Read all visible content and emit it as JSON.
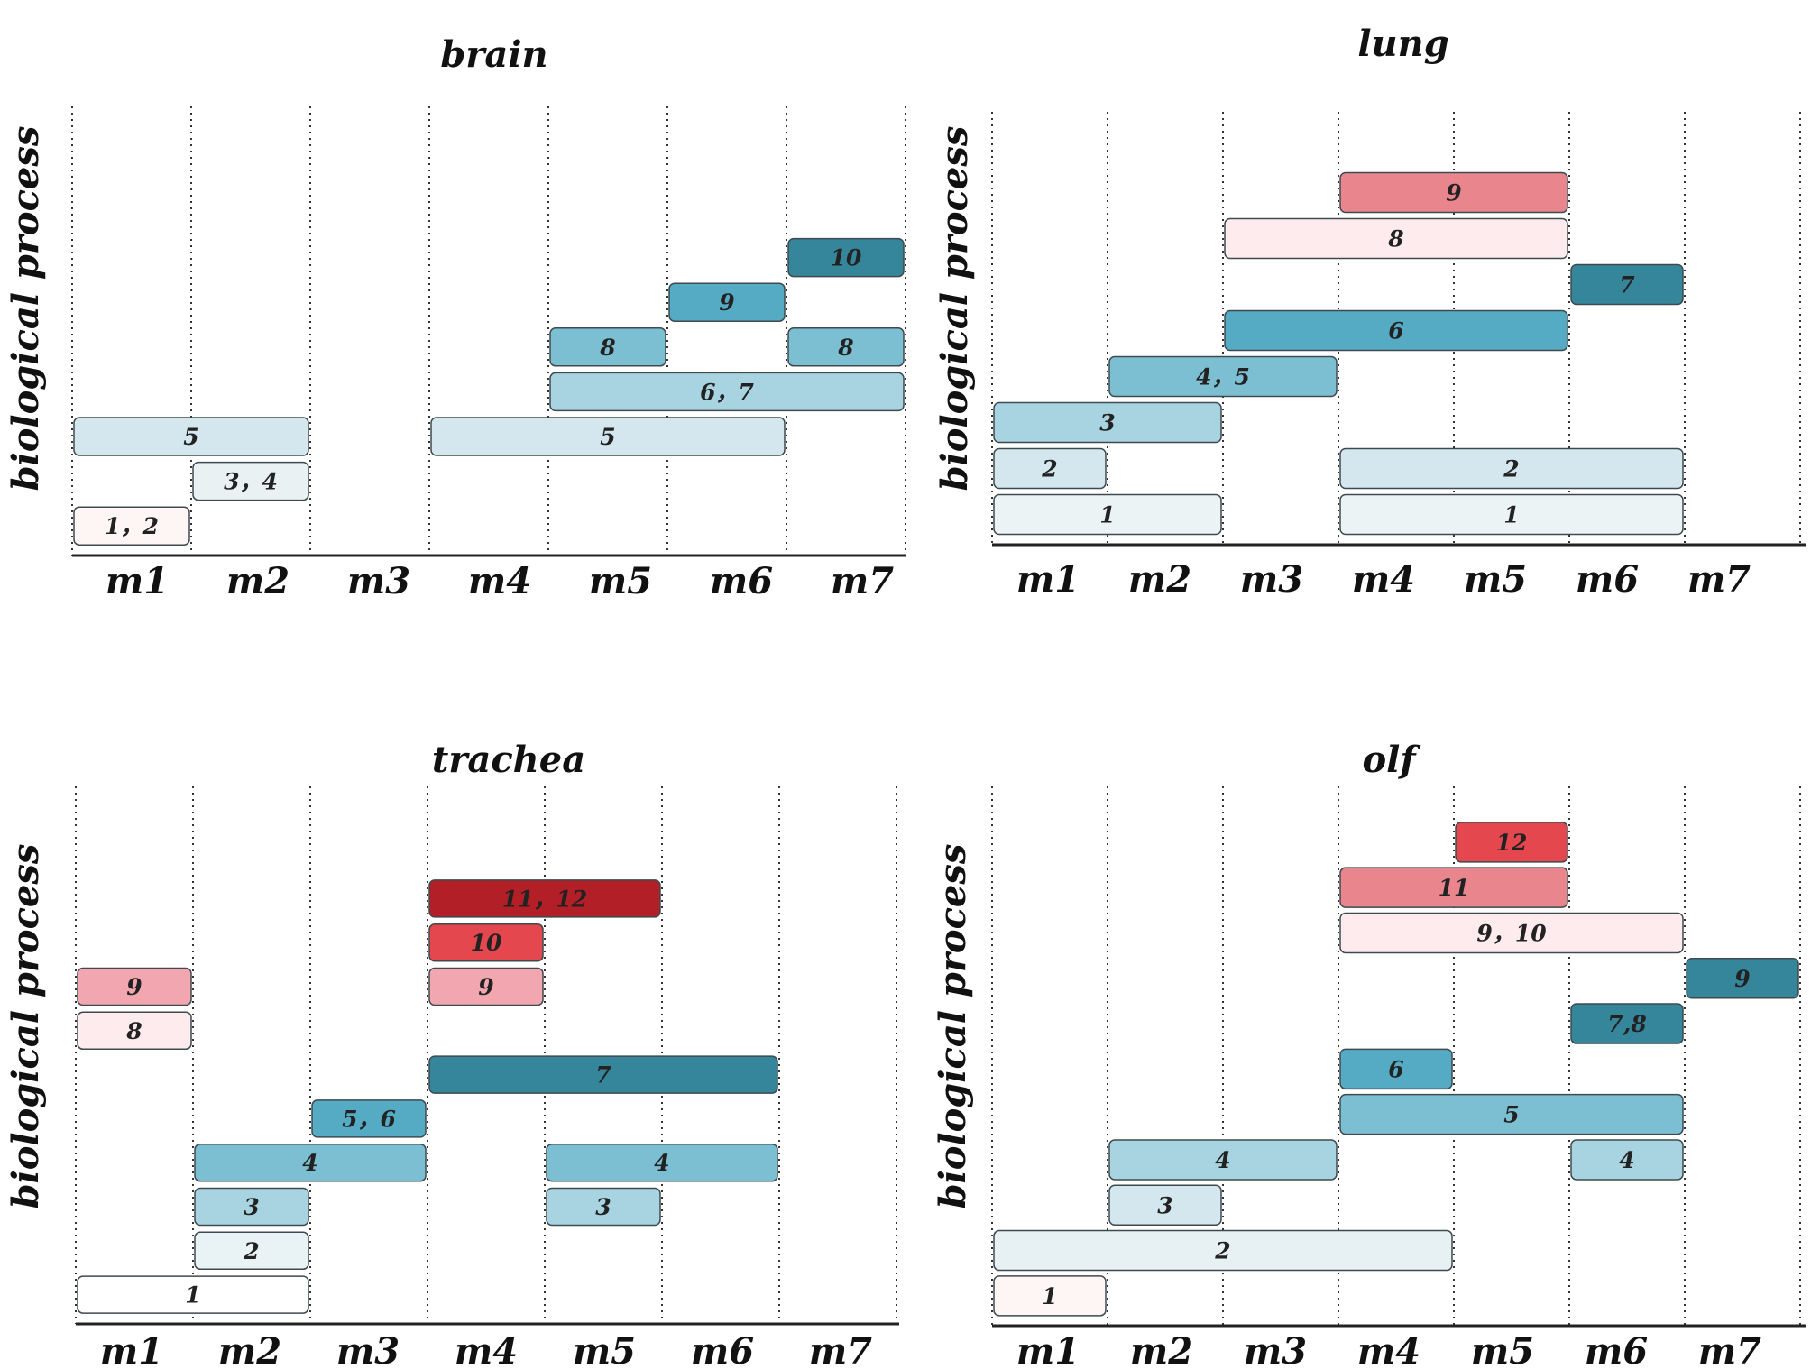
{
  "chart_data": [
    {
      "type": "gantt",
      "title": "brain",
      "ylabel": "biological process",
      "categories": [
        "m1",
        "m2",
        "m3",
        "m4",
        "m5",
        "m6",
        "m7"
      ],
      "bars": [
        {
          "label": "1，2",
          "start": 1,
          "end": 1,
          "level": 1,
          "color": "#fdf6f4"
        },
        {
          "label": "3，4",
          "start": 2,
          "end": 2,
          "level": 2,
          "color": "#e9f1f3"
        },
        {
          "label": "5",
          "start": 1,
          "end": 2,
          "level": 3,
          "color": "#d4e7ee"
        },
        {
          "label": "5",
          "start": 4,
          "end": 6,
          "level": 3,
          "color": "#d4e7ee"
        },
        {
          "label": "6，7",
          "start": 5,
          "end": 7,
          "level": 4,
          "color": "#a8d4e1"
        },
        {
          "label": "8",
          "start": 5,
          "end": 5,
          "level": 5,
          "color": "#7dbfd2"
        },
        {
          "label": "8",
          "start": 7,
          "end": 7,
          "level": 5,
          "color": "#7dbfd2"
        },
        {
          "label": "9",
          "start": 6,
          "end": 6,
          "level": 6,
          "color": "#55abc4"
        },
        {
          "label": "10",
          "start": 7,
          "end": 7,
          "level": 7,
          "color": "#35869b"
        }
      ]
    },
    {
      "type": "gantt",
      "title": "lung",
      "ylabel": "biological process",
      "categories": [
        "m1",
        "m2",
        "m3",
        "m4",
        "m5",
        "m6",
        "m7"
      ],
      "bars": [
        {
          "label": "1",
          "start": 1,
          "end": 2,
          "level": 1,
          "color": "#ecf3f5"
        },
        {
          "label": "1",
          "start": 4,
          "end": 6,
          "level": 1,
          "color": "#ecf3f5"
        },
        {
          "label": "2",
          "start": 1,
          "end": 1,
          "level": 2,
          "color": "#d4e7ee"
        },
        {
          "label": "2",
          "start": 4,
          "end": 6,
          "level": 2,
          "color": "#d4e7ee"
        },
        {
          "label": "3",
          "start": 1,
          "end": 2,
          "level": 3,
          "color": "#a8d4e1"
        },
        {
          "label": "4，5",
          "start": 2,
          "end": 3,
          "level": 4,
          "color": "#7dbfd2"
        },
        {
          "label": "6",
          "start": 3,
          "end": 5,
          "level": 5,
          "color": "#55abc4"
        },
        {
          "label": "7",
          "start": 6,
          "end": 6,
          "level": 6,
          "color": "#35869b"
        },
        {
          "label": "8",
          "start": 3,
          "end": 5,
          "level": 7,
          "color": "#fdebed"
        },
        {
          "label": "9",
          "start": 4,
          "end": 5,
          "level": 8,
          "color": "#e9868d"
        }
      ]
    },
    {
      "type": "gantt",
      "title": "trachea",
      "ylabel": "biological process",
      "categories": [
        "m1",
        "m2",
        "m3",
        "m4",
        "m5",
        "m6",
        "m7"
      ],
      "bars": [
        {
          "label": "1",
          "start": 1,
          "end": 2,
          "level": 1,
          "color": "#ffffff"
        },
        {
          "label": "2",
          "start": 2,
          "end": 2,
          "level": 2,
          "color": "#e9f2f5"
        },
        {
          "label": "3",
          "start": 2,
          "end": 2,
          "level": 3,
          "color": "#a8d4e1"
        },
        {
          "label": "3",
          "start": 5,
          "end": 5,
          "level": 3,
          "color": "#a8d4e1"
        },
        {
          "label": "4",
          "start": 2,
          "end": 3,
          "level": 4,
          "color": "#7dbfd2"
        },
        {
          "label": "4",
          "start": 5,
          "end": 6,
          "level": 4,
          "color": "#7dbfd2"
        },
        {
          "label": "5，6",
          "start": 3,
          "end": 3,
          "level": 5,
          "color": "#55abc4"
        },
        {
          "label": "7",
          "start": 4,
          "end": 6,
          "level": 6,
          "color": "#35869b"
        },
        {
          "label": "8",
          "start": 1,
          "end": 1,
          "level": 7,
          "color": "#fdebed"
        },
        {
          "label": "9",
          "start": 1,
          "end": 1,
          "level": 8,
          "color": "#f2a7b0"
        },
        {
          "label": "9",
          "start": 4,
          "end": 4,
          "level": 8,
          "color": "#f2a7b0"
        },
        {
          "label": "10",
          "start": 4,
          "end": 4,
          "level": 9,
          "color": "#e5474f"
        },
        {
          "label": "11，12",
          "start": 4,
          "end": 5,
          "level": 10,
          "color": "#b21f26"
        }
      ]
    },
    {
      "type": "gantt",
      "title": "olf",
      "ylabel": "biological process",
      "categories": [
        "m1",
        "m2",
        "m3",
        "m4",
        "m5",
        "m6",
        "m7"
      ],
      "bars": [
        {
          "label": "1",
          "start": 1,
          "end": 1,
          "level": 1,
          "color": "#fdf6f4"
        },
        {
          "label": "2",
          "start": 1,
          "end": 4,
          "level": 2,
          "color": "#e7f0f3"
        },
        {
          "label": "3",
          "start": 2,
          "end": 2,
          "level": 3,
          "color": "#d4e7ee"
        },
        {
          "label": "4",
          "start": 2,
          "end": 3,
          "level": 4,
          "color": "#a8d4e1"
        },
        {
          "label": "4",
          "start": 6,
          "end": 6,
          "level": 4,
          "color": "#a8d4e1"
        },
        {
          "label": "5",
          "start": 4,
          "end": 6,
          "level": 5,
          "color": "#7dbfd2"
        },
        {
          "label": "6",
          "start": 4,
          "end": 4,
          "level": 6,
          "color": "#55abc4"
        },
        {
          "label": "7,8",
          "start": 6,
          "end": 6,
          "level": 7,
          "color": "#35869b"
        },
        {
          "label": "9",
          "start": 7,
          "end": 7,
          "level": 8,
          "color": "#35869b"
        },
        {
          "label": "9，10",
          "start": 4,
          "end": 6,
          "level": 9,
          "color": "#fdebed"
        },
        {
          "label": "11",
          "start": 4,
          "end": 5,
          "level": 10,
          "color": "#e9868d"
        },
        {
          "label": "12",
          "start": 5,
          "end": 5,
          "level": 11,
          "color": "#e5474f"
        }
      ]
    }
  ]
}
